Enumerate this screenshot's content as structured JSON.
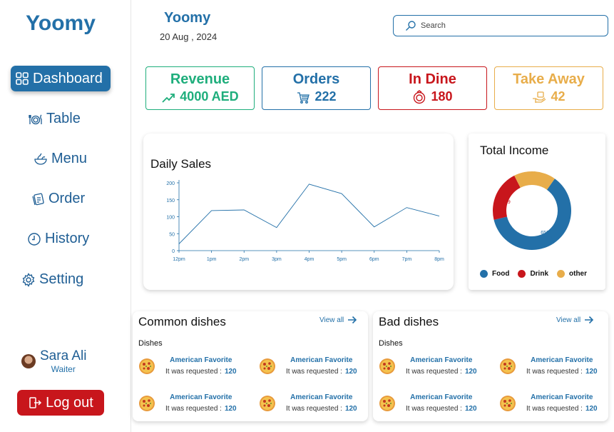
{
  "sidebar": {
    "brand": "Yoomy",
    "items": [
      {
        "label": "Dashboard",
        "icon": "grid-icon"
      },
      {
        "label": "Table",
        "icon": "dining-icon"
      },
      {
        "label": "Menu",
        "icon": "bowl-icon"
      },
      {
        "label": "Order",
        "icon": "receipt-icon"
      },
      {
        "label": "History",
        "icon": "clock-icon"
      },
      {
        "label": "Setting",
        "icon": "gear-icon"
      }
    ],
    "user": {
      "name": "Sara Ali",
      "role": "Waiter"
    },
    "logout_label": "Log out"
  },
  "header": {
    "title": "Yoomy",
    "date": "20 Aug , 2024",
    "search_placeholder": "Search"
  },
  "stats": {
    "revenue": {
      "label": "Revenue",
      "value": "4000 AED",
      "color": "#1fae7c"
    },
    "orders": {
      "label": "Orders",
      "value": "222",
      "color": "#2370a8"
    },
    "in_dine": {
      "label": "In Dine",
      "value": "180",
      "color": "#c8161c"
    },
    "take_away": {
      "label": "Take Away",
      "value": "42",
      "color": "#e8ad4a"
    }
  },
  "daily_sales": {
    "title": "Daily Sales"
  },
  "total_income": {
    "title": "Total Income"
  },
  "chart_data": [
    {
      "type": "line",
      "title": "Daily Sales",
      "x": [
        "12pm",
        "1pm",
        "2pm",
        "3pm",
        "4pm",
        "5pm",
        "6pm",
        "7pm",
        "8pm"
      ],
      "series": [
        {
          "values": [
            20,
            118,
            120,
            68,
            196,
            168,
            70,
            127,
            102
          ]
        }
      ],
      "yticks": [
        0,
        50,
        100,
        150,
        200
      ],
      "ylim": [
        0,
        200
      ],
      "color": "#2370a8",
      "grid": false
    },
    {
      "type": "pie",
      "title": "Total Income",
      "labels": [
        "Food",
        "Drink",
        "other"
      ],
      "values": [
        659,
        229,
        186
      ],
      "value_labels": [
        "659",
        "229",
        "186"
      ],
      "colors": [
        "#2370a8",
        "#c8161c",
        "#e8ad4a"
      ],
      "donut": true,
      "legend": "bottom"
    }
  ],
  "common_dishes": {
    "title": "Common dishes",
    "view_all": "View all",
    "subtitle": "Dishes",
    "items": [
      {
        "name": "American Favorite",
        "requested_label": "It was requested :",
        "count": "120"
      },
      {
        "name": "American Favorite",
        "requested_label": "It was requested :",
        "count": "120"
      },
      {
        "name": "American Favorite",
        "requested_label": "It was requested :",
        "count": "120"
      },
      {
        "name": "American Favorite",
        "requested_label": "It was requested :",
        "count": "120"
      }
    ]
  },
  "bad_dishes": {
    "title": "Bad dishes",
    "view_all": "View all",
    "subtitle": "Dishes",
    "items": [
      {
        "name": "American Favorite",
        "requested_label": "It was requested :",
        "count": "120"
      },
      {
        "name": "American Favorite",
        "requested_label": "It was requested :",
        "count": "120"
      },
      {
        "name": "American Favorite",
        "requested_label": "It was requested :",
        "count": "120"
      },
      {
        "name": "American Favorite",
        "requested_label": "It was requested :",
        "count": "120"
      }
    ]
  }
}
